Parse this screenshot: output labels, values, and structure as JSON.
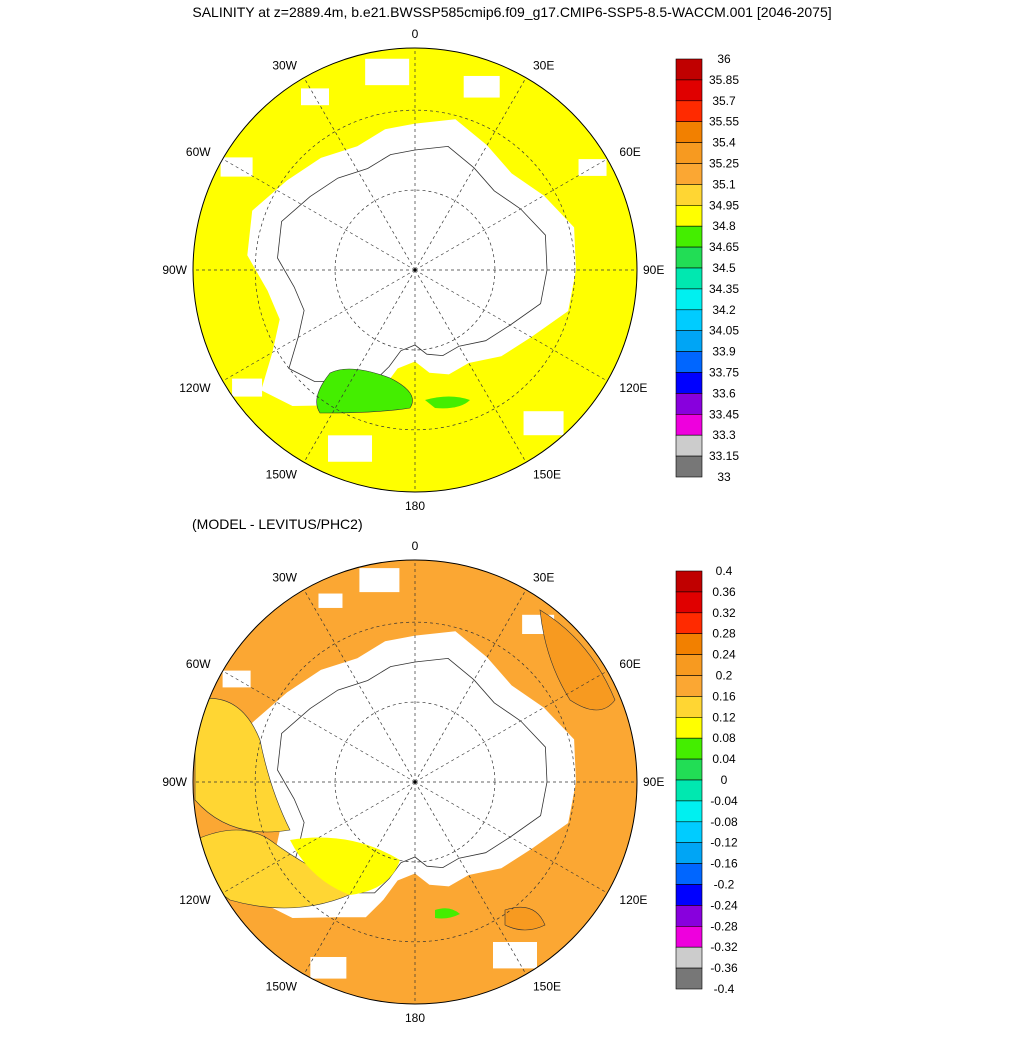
{
  "title": "SALINITY at z=2889.4m, b.e21.BWSSP585cmip6.f09_g17.CMIP6-SSP5-8.5-WACCM.001 [2046-2075]",
  "subtitle": "(MODEL - LEVITUS/PHC2)",
  "longitude_labels": [
    "0",
    "30E",
    "60E",
    "90E",
    "120E",
    "150E",
    "180",
    "150W",
    "120W",
    "90W",
    "60W",
    "30W"
  ],
  "maps": [
    {
      "id": "salinity",
      "field_color": "#ffff00",
      "colorbar": {
        "labels": [
          "36",
          "35.85",
          "35.7",
          "35.55",
          "35.4",
          "35.25",
          "35.1",
          "34.95",
          "34.8",
          "34.65",
          "34.5",
          "34.35",
          "34.2",
          "34.05",
          "33.9",
          "33.75",
          "33.6",
          "33.45",
          "33.3",
          "33.15",
          "33"
        ],
        "colors": [
          "#c00000",
          "#e00000",
          "#ff2a00",
          "#f28000",
          "#f79a20",
          "#fba733",
          "#ffd633",
          "#ffff00",
          "#44ee00",
          "#22dd55",
          "#00e8b0",
          "#00f0f0",
          "#00ccff",
          "#00a5f5",
          "#0066ff",
          "#0000ff",
          "#8800dd",
          "#ee00dd",
          "#cccccc",
          "#777777"
        ]
      }
    },
    {
      "id": "difference",
      "field_color": "#fba733",
      "colorbar": {
        "labels": [
          "0.4",
          "0.36",
          "0.32",
          "0.28",
          "0.24",
          "0.2",
          "0.16",
          "0.12",
          "0.08",
          "0.04",
          "0",
          "-0.04",
          "-0.08",
          "-0.12",
          "-0.16",
          "-0.2",
          "-0.24",
          "-0.28",
          "-0.32",
          "-0.36",
          "-0.4"
        ],
        "colors": [
          "#c00000",
          "#e00000",
          "#ff2a00",
          "#f28000",
          "#f79a20",
          "#fba733",
          "#ffd633",
          "#ffff00",
          "#44ee00",
          "#22dd55",
          "#00e8b0",
          "#00f0f0",
          "#00ccff",
          "#00a5f5",
          "#0066ff",
          "#0000ff",
          "#8800dd",
          "#ee00dd",
          "#cccccc",
          "#777777"
        ]
      }
    }
  ]
}
